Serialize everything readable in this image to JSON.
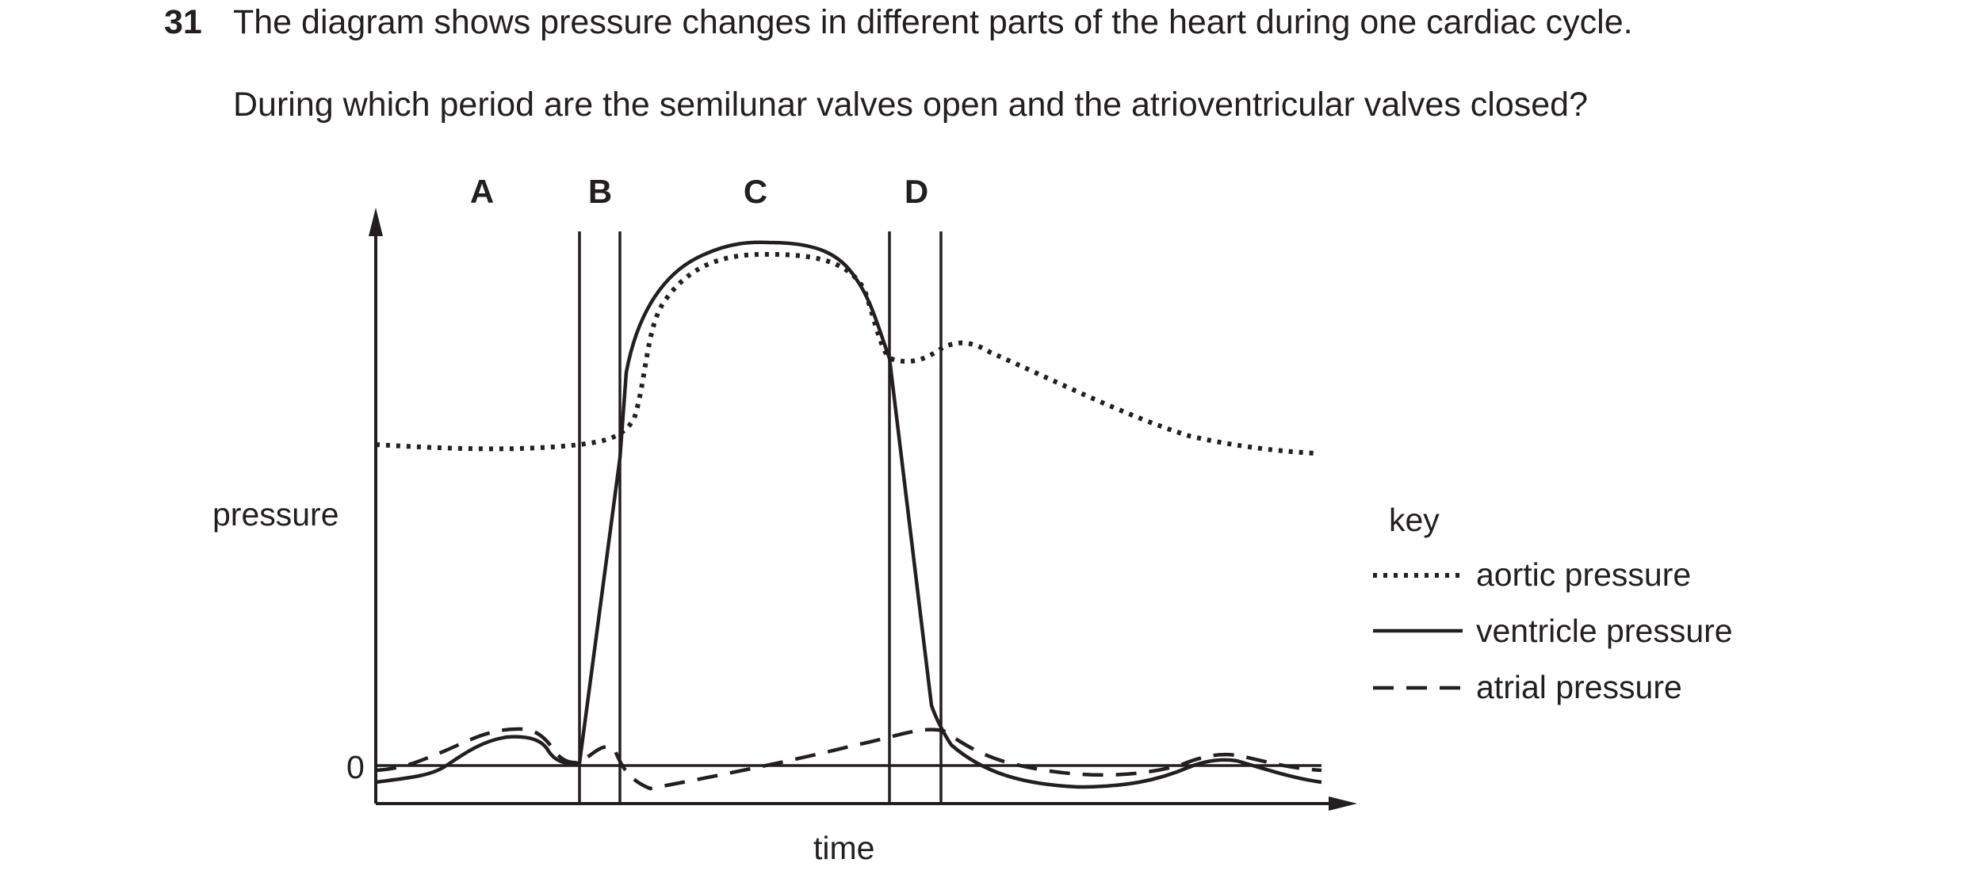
{
  "question": {
    "number": "31",
    "line1": "The diagram shows pressure changes in different parts of the heart during one cardiac cycle.",
    "line2": "During which period are the semilunar valves open and the atrioventricular valves closed?"
  },
  "diagram": {
    "axis": {
      "y_label": "pressure",
      "x_label": "time",
      "zero_label": "0"
    },
    "periods": [
      "A",
      "B",
      "C",
      "D"
    ],
    "key": {
      "title": "key",
      "items": [
        {
          "label": "aortic pressure",
          "style": "dotted"
        },
        {
          "label": "ventricle pressure",
          "style": "solid"
        },
        {
          "label": "atrial pressure",
          "style": "dashed"
        }
      ]
    },
    "colors": {
      "ink": "#231f20",
      "background": "#ffffff"
    }
  }
}
